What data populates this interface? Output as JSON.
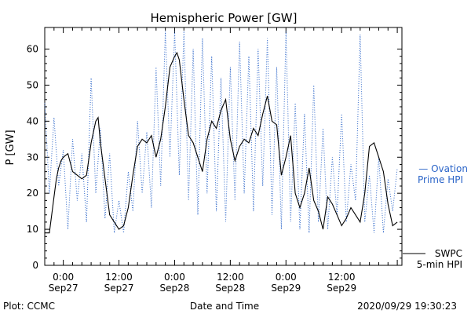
{
  "chart_data": {
    "type": "line",
    "title": "Hemispheric Power [GW]",
    "xlabel": "Date and Time",
    "ylabel": "P [GW]",
    "ylim": [
      0,
      66
    ],
    "xlim": [
      "2020-09-26T20:00",
      "2020-09-30T01:00"
    ],
    "yticks": [
      0,
      10,
      20,
      30,
      40,
      50,
      60
    ],
    "xticks": [
      {
        "t": "2020-09-27T00:00",
        "time": "0:00",
        "date": "Sep27"
      },
      {
        "t": "2020-09-27T12:00",
        "time": "12:00",
        "date": "Sep27"
      },
      {
        "t": "2020-09-28T00:00",
        "time": "0:00",
        "date": "Sep28"
      },
      {
        "t": "2020-09-28T12:00",
        "time": "12:00",
        "date": "Sep28"
      },
      {
        "t": "2020-09-29T00:00",
        "time": "0:00",
        "date": "Sep29"
      },
      {
        "t": "2020-09-29T12:00",
        "time": "12:00",
        "date": "Sep29"
      }
    ],
    "legend": [
      {
        "label_line1": "— Ovation",
        "label_line2": "Prime HPI",
        "color": "#2a64c8",
        "style": "dotted",
        "placement": "right"
      },
      {
        "label_line1": "SWPC",
        "label_line2": "5-min HPI",
        "color": "#000000",
        "style": "solid",
        "placement": "right"
      }
    ],
    "series": [
      {
        "color": "#000000",
        "style": "solid",
        "points": [
          [
            "2020-09-26T20:00",
            9
          ],
          [
            "2020-09-26T21:00",
            9
          ],
          [
            "2020-09-26T22:00",
            19
          ],
          [
            "2020-09-26T22:30",
            24
          ],
          [
            "2020-09-26T23:00",
            27
          ],
          [
            "2020-09-26T23:30",
            29
          ],
          [
            "2020-09-27T00:00",
            30
          ],
          [
            "2020-09-27T01:00",
            31
          ],
          [
            "2020-09-27T02:00",
            26
          ],
          [
            "2020-09-27T03:00",
            25
          ],
          [
            "2020-09-27T04:00",
            24
          ],
          [
            "2020-09-27T05:00",
            25
          ],
          [
            "2020-09-27T06:00",
            34
          ],
          [
            "2020-09-27T07:00",
            40
          ],
          [
            "2020-09-27T07:30",
            41
          ],
          [
            "2020-09-27T08:00",
            34
          ],
          [
            "2020-09-27T09:00",
            24
          ],
          [
            "2020-09-27T10:00",
            14
          ],
          [
            "2020-09-27T11:00",
            12
          ],
          [
            "2020-09-27T12:00",
            10
          ],
          [
            "2020-09-27T13:00",
            11
          ],
          [
            "2020-09-27T14:00",
            16
          ],
          [
            "2020-09-27T15:00",
            25
          ],
          [
            "2020-09-27T16:00",
            33
          ],
          [
            "2020-09-27T17:00",
            35
          ],
          [
            "2020-09-27T18:00",
            34
          ],
          [
            "2020-09-27T19:00",
            36
          ],
          [
            "2020-09-27T20:00",
            30
          ],
          [
            "2020-09-27T21:00",
            35
          ],
          [
            "2020-09-27T22:00",
            44
          ],
          [
            "2020-09-27T23:00",
            55
          ],
          [
            "2020-09-28T00:00",
            58
          ],
          [
            "2020-09-28T00:30",
            59
          ],
          [
            "2020-09-28T01:00",
            57
          ],
          [
            "2020-09-28T02:00",
            46
          ],
          [
            "2020-09-28T03:00",
            36
          ],
          [
            "2020-09-28T04:00",
            34
          ],
          [
            "2020-09-28T05:00",
            30
          ],
          [
            "2020-09-28T06:00",
            26
          ],
          [
            "2020-09-28T07:00",
            35
          ],
          [
            "2020-09-28T08:00",
            40
          ],
          [
            "2020-09-28T09:00",
            38
          ],
          [
            "2020-09-28T10:00",
            43
          ],
          [
            "2020-09-28T11:00",
            46
          ],
          [
            "2020-09-28T12:00",
            35
          ],
          [
            "2020-09-28T13:00",
            29
          ],
          [
            "2020-09-28T14:00",
            33
          ],
          [
            "2020-09-28T15:00",
            35
          ],
          [
            "2020-09-28T16:00",
            34
          ],
          [
            "2020-09-28T17:00",
            38
          ],
          [
            "2020-09-28T18:00",
            36
          ],
          [
            "2020-09-28T19:00",
            42
          ],
          [
            "2020-09-28T20:00",
            47
          ],
          [
            "2020-09-28T21:00",
            40
          ],
          [
            "2020-09-28T22:00",
            39
          ],
          [
            "2020-09-28T23:00",
            25
          ],
          [
            "2020-09-29T00:00",
            30
          ],
          [
            "2020-09-29T01:00",
            36
          ],
          [
            "2020-09-29T02:00",
            20
          ],
          [
            "2020-09-29T03:00",
            16
          ],
          [
            "2020-09-29T04:00",
            20
          ],
          [
            "2020-09-29T05:00",
            27
          ],
          [
            "2020-09-29T06:00",
            18
          ],
          [
            "2020-09-29T07:00",
            15
          ],
          [
            "2020-09-29T08:00",
            10
          ],
          [
            "2020-09-29T09:00",
            19
          ],
          [
            "2020-09-29T10:00",
            17
          ],
          [
            "2020-09-29T11:00",
            14
          ],
          [
            "2020-09-29T12:00",
            11
          ],
          [
            "2020-09-29T13:00",
            13
          ],
          [
            "2020-09-29T14:00",
            16
          ],
          [
            "2020-09-29T15:00",
            14
          ],
          [
            "2020-09-29T16:00",
            12
          ],
          [
            "2020-09-29T17:00",
            20
          ],
          [
            "2020-09-29T18:00",
            33
          ],
          [
            "2020-09-29T19:00",
            34
          ],
          [
            "2020-09-29T20:00",
            30
          ],
          [
            "2020-09-29T21:00",
            26
          ],
          [
            "2020-09-29T22:00",
            17
          ],
          [
            "2020-09-29T23:00",
            11
          ],
          [
            "2020-09-30T00:00",
            12
          ]
        ]
      },
      {
        "color": "#2a64c8",
        "style": "dotted",
        "points": [
          [
            "2020-09-26T20:00",
            45
          ],
          [
            "2020-09-26T21:00",
            20
          ],
          [
            "2020-09-26T22:00",
            41
          ],
          [
            "2020-09-26T23:00",
            22
          ],
          [
            "2020-09-27T00:00",
            32
          ],
          [
            "2020-09-27T01:00",
            10
          ],
          [
            "2020-09-27T02:00",
            35
          ],
          [
            "2020-09-27T03:00",
            18
          ],
          [
            "2020-09-27T04:00",
            31
          ],
          [
            "2020-09-27T05:00",
            12
          ],
          [
            "2020-09-27T06:00",
            52
          ],
          [
            "2020-09-27T07:00",
            20
          ],
          [
            "2020-09-27T08:00",
            38
          ],
          [
            "2020-09-27T09:00",
            13
          ],
          [
            "2020-09-27T10:00",
            31
          ],
          [
            "2020-09-27T11:00",
            9
          ],
          [
            "2020-09-27T12:00",
            18
          ],
          [
            "2020-09-27T13:00",
            9
          ],
          [
            "2020-09-27T14:00",
            26
          ],
          [
            "2020-09-27T15:00",
            15
          ],
          [
            "2020-09-27T16:00",
            40
          ],
          [
            "2020-09-27T17:00",
            20
          ],
          [
            "2020-09-27T18:00",
            37
          ],
          [
            "2020-09-27T19:00",
            16
          ],
          [
            "2020-09-27T20:00",
            55
          ],
          [
            "2020-09-27T21:00",
            22
          ],
          [
            "2020-09-27T22:00",
            65
          ],
          [
            "2020-09-27T23:00",
            30
          ],
          [
            "2020-09-28T00:00",
            65
          ],
          [
            "2020-09-28T01:00",
            25
          ],
          [
            "2020-09-28T02:00",
            65
          ],
          [
            "2020-09-28T03:00",
            18
          ],
          [
            "2020-09-28T04:00",
            60
          ],
          [
            "2020-09-28T05:00",
            14
          ],
          [
            "2020-09-28T06:00",
            63
          ],
          [
            "2020-09-28T07:00",
            20
          ],
          [
            "2020-09-28T08:00",
            58
          ],
          [
            "2020-09-28T09:00",
            15
          ],
          [
            "2020-09-28T10:00",
            52
          ],
          [
            "2020-09-28T11:00",
            12
          ],
          [
            "2020-09-28T12:00",
            55
          ],
          [
            "2020-09-28T13:00",
            18
          ],
          [
            "2020-09-28T14:00",
            62
          ],
          [
            "2020-09-28T15:00",
            20
          ],
          [
            "2020-09-28T16:00",
            58
          ],
          [
            "2020-09-28T17:00",
            15
          ],
          [
            "2020-09-28T18:00",
            60
          ],
          [
            "2020-09-28T19:00",
            22
          ],
          [
            "2020-09-28T20:00",
            63
          ],
          [
            "2020-09-28T21:00",
            14
          ],
          [
            "2020-09-28T22:00",
            55
          ],
          [
            "2020-09-28T23:00",
            10
          ],
          [
            "2020-09-29T00:00",
            65
          ],
          [
            "2020-09-29T01:00",
            12
          ],
          [
            "2020-09-29T02:00",
            45
          ],
          [
            "2020-09-29T03:00",
            10
          ],
          [
            "2020-09-29T04:00",
            42
          ],
          [
            "2020-09-29T05:00",
            9
          ],
          [
            "2020-09-29T06:00",
            50
          ],
          [
            "2020-09-29T07:00",
            12
          ],
          [
            "2020-09-29T08:00",
            38
          ],
          [
            "2020-09-29T09:00",
            10
          ],
          [
            "2020-09-29T10:00",
            30
          ],
          [
            "2020-09-29T11:00",
            14
          ],
          [
            "2020-09-29T12:00",
            42
          ],
          [
            "2020-09-29T13:00",
            12
          ],
          [
            "2020-09-29T14:00",
            28
          ],
          [
            "2020-09-29T15:00",
            18
          ],
          [
            "2020-09-29T16:00",
            64
          ],
          [
            "2020-09-29T17:00",
            12
          ],
          [
            "2020-09-29T18:00",
            25
          ],
          [
            "2020-09-29T19:00",
            9
          ],
          [
            "2020-09-29T20:00",
            30
          ],
          [
            "2020-09-29T21:00",
            9
          ],
          [
            "2020-09-29T22:00",
            24
          ],
          [
            "2020-09-29T23:00",
            15
          ],
          [
            "2020-09-30T00:00",
            27
          ]
        ]
      }
    ]
  },
  "footer": {
    "left": "Plot: CCMC",
    "center": "Date and Time",
    "right": "2020/09/29 19:30:23"
  }
}
